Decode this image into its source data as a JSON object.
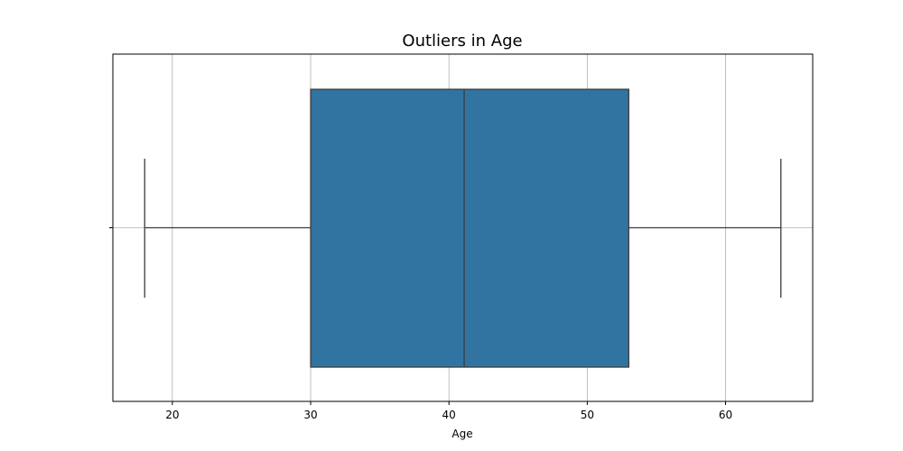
{
  "chart_data": {
    "type": "boxplot",
    "title": "Outliers in Age",
    "xlabel": "Age",
    "ylabel": "",
    "xlim": [
      15.7,
      66.3
    ],
    "xticks": [
      20,
      30,
      40,
      50,
      60
    ],
    "grid": true,
    "orientation": "horizontal",
    "box": {
      "whisker_low": 18,
      "q1": 30,
      "median": 41.1,
      "q3": 53,
      "whisker_high": 64
    },
    "colors": {
      "box_fill": "#3274a1",
      "line": "#3c3c3c",
      "grid": "#b0b0b0"
    }
  }
}
